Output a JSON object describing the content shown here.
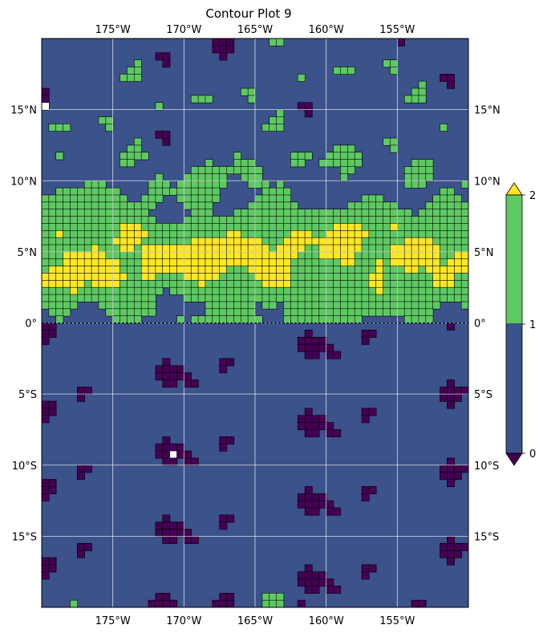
{
  "chart_data": {
    "type": "contourf",
    "title": "Contour Plot 9",
    "xlabel": "",
    "ylabel": "",
    "projection": "PlateCarree",
    "xlim": [
      -180,
      -150
    ],
    "ylim": [
      -20,
      20
    ],
    "grid": true,
    "x_ticks": [
      -175,
      -170,
      -165,
      -160,
      -155
    ],
    "x_tick_labels": [
      "175°W",
      "170°W",
      "165°W",
      "160°W",
      "155°W"
    ],
    "y_ticks": [
      15,
      10,
      5,
      0,
      -5,
      -10,
      -15
    ],
    "y_tick_labels": [
      "15°N",
      "10°N",
      "5°N",
      "0°",
      "5°S",
      "10°S",
      "15°S"
    ],
    "levels": [
      0,
      1,
      2
    ],
    "extend": "both",
    "colorbar": {
      "orientation": "vertical",
      "position": "right",
      "tick_values": [
        0,
        1,
        2
      ],
      "tick_labels": [
        "0",
        "1",
        "2"
      ]
    },
    "level_colors": {
      "below_0": "#440154",
      "0_to_1": "#3b528b",
      "1_to_2": "#5ec962",
      "above_2": "#fde725",
      "missing": "#ffffff"
    },
    "contour_line_color": "#000000",
    "equator_line": "dashed",
    "field_description": "noisy scalar field; mostly 0–1 band, values below 0 concentrated south of the equator and in the northern part, values 1–2 and above 2 concentrated between the equator and 10°N"
  }
}
